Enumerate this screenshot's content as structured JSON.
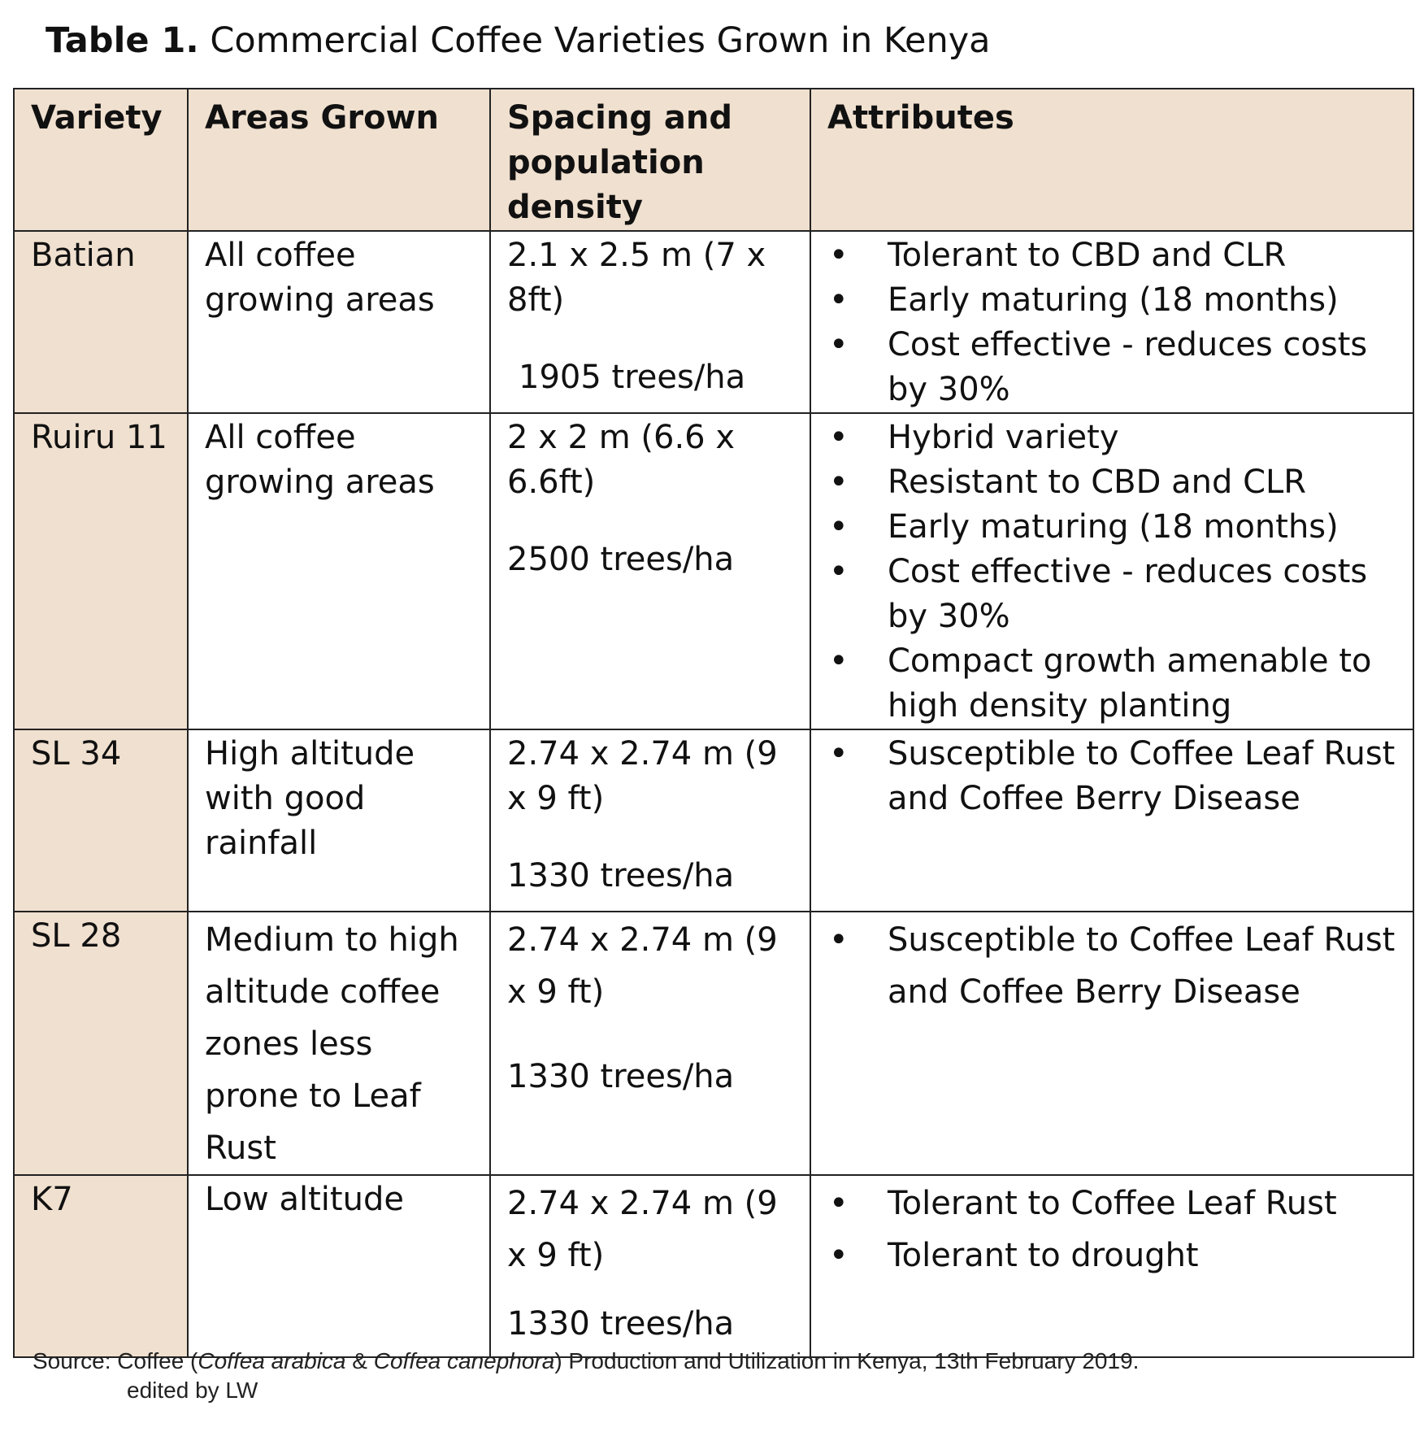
{
  "caption": {
    "label": "Table 1.",
    "title": "Commercial Coffee Varieties Grown in Kenya"
  },
  "table": {
    "headers": [
      "Variety",
      "Areas Grown",
      "Spacing and population density",
      "Attributes"
    ],
    "rows": [
      {
        "variety": "Batian",
        "areas": "All coffee growing areas",
        "spacing": "2.1 x 2.5 m (7 x 8ft)",
        "density": "1905 trees/ha",
        "attributes": [
          "Tolerant to CBD and CLR",
          "Early maturing (18 months)",
          "Cost effective - reduces costs by 30%"
        ]
      },
      {
        "variety": "Ruiru 11",
        "areas": "All coffee growing areas",
        "spacing": "2 x 2 m (6.6 x 6.6ft)",
        "density": "2500 trees/ha",
        "attributes": [
          "Hybrid variety",
          "Resistant to CBD and CLR",
          "Early maturing (18 months)",
          "Cost effective - reduces costs by 30%",
          "Compact growth amenable to high density planting"
        ]
      },
      {
        "variety": "SL 34",
        "areas": "High altitude with good rainfall",
        "spacing": "2.74 x 2.74 m (9 x 9 ft)",
        "density": "1330 trees/ha",
        "attributes": [
          "Susceptible to Coffee Leaf Rust and Coffee Berry Disease"
        ]
      },
      {
        "variety": "SL 28",
        "areas": "Medium to high altitude coffee zones less prone to Leaf Rust",
        "spacing": "2.74 x 2.74 m (9 x 9 ft)",
        "density": "1330 trees/ha",
        "attributes": [
          "Susceptible to Coffee Leaf Rust and Coffee Berry Disease"
        ]
      },
      {
        "variety": "K7",
        "areas": "Low altitude",
        "spacing": "2.74 x 2.74 m (9 x 9 ft)",
        "density": "1330 trees/ha",
        "attributes": [
          "Tolerant to Coffee Leaf Rust",
          "Tolerant to drought"
        ]
      }
    ]
  },
  "source": {
    "prefix": "Source: Coffee (",
    "species1": "Coffea arabica",
    "amp": " & ",
    "species2": "Coffea canephora",
    "suffix": ") Production and Utilization in Kenya, 13th February 2019.",
    "edited": "edited by LW"
  },
  "colors": {
    "header_fill": "#f0e0cf",
    "border": "#222222"
  }
}
